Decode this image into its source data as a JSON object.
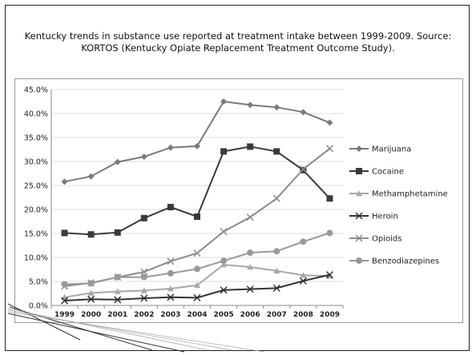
{
  "caption": "Kentucky trends in substance use reported at treatment intake between 1999-2009. Source: KORTOS (Kentucky Opiate Replacement Treatment Outcome Study).",
  "chart_data": {
    "type": "line",
    "x": [
      "1999",
      "2000",
      "2001",
      "2002",
      "2003",
      "2004",
      "2005",
      "2006",
      "2007",
      "2008",
      "2009"
    ],
    "ylim": [
      0,
      45
    ],
    "yticks": [
      "0.0%",
      "5.0%",
      "10.0%",
      "15.0%",
      "20.0%",
      "25.0%",
      "30.0%",
      "35.0%",
      "40.0%",
      "45.0%"
    ],
    "ytick_values": [
      0,
      5,
      10,
      15,
      20,
      25,
      30,
      35,
      40,
      45
    ],
    "grid": true,
    "legend_position": "right",
    "series": [
      {
        "name": "Marijuana",
        "marker": "diamond",
        "color": "#7a7a7a",
        "values": [
          25.8,
          26.9,
          29.9,
          31.0,
          32.9,
          33.2,
          42.5,
          41.8,
          41.3,
          40.3,
          38.1
        ]
      },
      {
        "name": "Cocaine",
        "marker": "square",
        "color": "#3a3a3a",
        "values": [
          15.1,
          14.8,
          15.2,
          18.2,
          20.5,
          18.5,
          32.1,
          33.1,
          32.1,
          28.2,
          22.3
        ]
      },
      {
        "name": "Methamphetamine",
        "marker": "triangle",
        "color": "#a8a8a8",
        "values": [
          1.7,
          2.6,
          2.9,
          3.1,
          3.5,
          4.2,
          8.5,
          8.0,
          7.2,
          6.3,
          6.1
        ]
      },
      {
        "name": "Heroin",
        "marker": "x",
        "color": "#333333",
        "values": [
          1.0,
          1.3,
          1.2,
          1.5,
          1.7,
          1.6,
          3.2,
          3.4,
          3.6,
          5.1,
          6.4
        ]
      },
      {
        "name": "Opioids",
        "marker": "x",
        "color": "#8c8c8c",
        "values": [
          4.0,
          4.7,
          5.9,
          7.0,
          9.2,
          10.9,
          15.4,
          18.4,
          22.3,
          28.4,
          32.7
        ]
      },
      {
        "name": "Benzodiazepines",
        "marker": "circle",
        "color": "#999999",
        "values": [
          4.4,
          4.6,
          5.9,
          5.9,
          6.7,
          7.6,
          9.3,
          11.0,
          11.3,
          13.3,
          15.1
        ]
      }
    ]
  }
}
